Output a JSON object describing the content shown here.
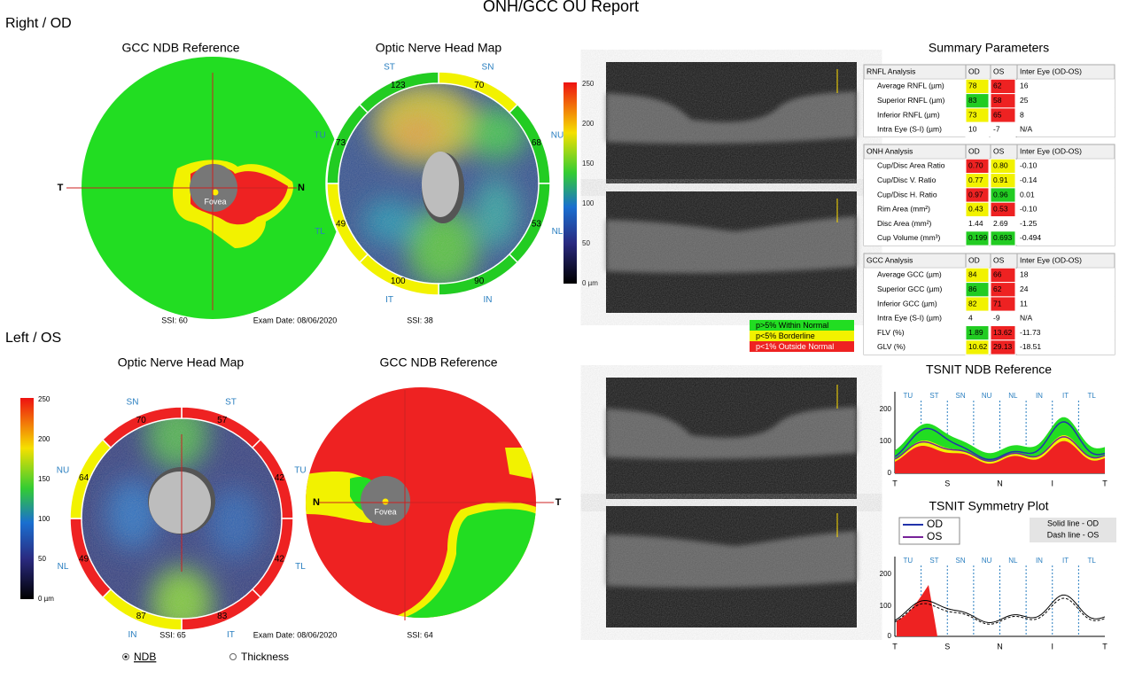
{
  "header": {
    "title": "ONH/GCC OU Report"
  },
  "exam_date": "Exam Date: 08/06/2020",
  "colorbar": [
    "250",
    "200",
    "150",
    "100",
    "50",
    "0 µm"
  ],
  "od": {
    "label": "Right / OD",
    "gcc": {
      "title": "GCC NDB Reference",
      "fovea": "Fovea",
      "temporal": "T",
      "nasal": "N",
      "ssi": "SSI: 60"
    },
    "onh": {
      "title": "Optic Nerve Head Map",
      "ssi": "SSI: 38",
      "sectors": [
        {
          "name": "SN",
          "value": "70",
          "color": "#f2f200"
        },
        {
          "name": "NU",
          "value": "68",
          "color": "#22cc22"
        },
        {
          "name": "NL",
          "value": "53",
          "color": "#22cc22"
        },
        {
          "name": "IN",
          "value": "90",
          "color": "#22cc22"
        },
        {
          "name": "IT",
          "value": "100",
          "color": "#f2f200"
        },
        {
          "name": "TL",
          "value": "49",
          "color": "#f2f200"
        },
        {
          "name": "TU",
          "value": "73",
          "color": "#22cc22"
        },
        {
          "name": "ST",
          "value": "123",
          "color": "#22cc22"
        }
      ]
    }
  },
  "os": {
    "label": "Left / OS",
    "onh": {
      "title": "Optic Nerve Head Map",
      "ssi": "SSI: 65",
      "sectors": [
        {
          "name": "ST",
          "value": "57",
          "color": "#ee2222"
        },
        {
          "name": "TU",
          "value": "42",
          "color": "#ee2222"
        },
        {
          "name": "TL",
          "value": "42",
          "color": "#ee2222"
        },
        {
          "name": "IT",
          "value": "83",
          "color": "#ee2222"
        },
        {
          "name": "IN",
          "value": "87",
          "color": "#f2f200"
        },
        {
          "name": "NL",
          "value": "49",
          "color": "#ee2222"
        },
        {
          "name": "NU",
          "value": "64",
          "color": "#f2f200"
        },
        {
          "name": "SN",
          "value": "70",
          "color": "#ee2222"
        }
      ]
    },
    "gcc": {
      "title": "GCC NDB Reference",
      "fovea": "Fovea",
      "temporal": "T",
      "nasal": "N",
      "ssi": "SSI: 64"
    }
  },
  "ndb_legend": [
    {
      "label": "p>5% Within Normal",
      "color": "#22dd22"
    },
    {
      "label": "p<5% Borderline",
      "color": "#f2f200"
    },
    {
      "label": "p<1% Outside Normal",
      "color": "#ee2222"
    }
  ],
  "summary": {
    "title": "Summary Parameters",
    "tables": [
      {
        "header": [
          "RNFL Analysis",
          "OD",
          "OS",
          "Inter Eye (OD-OS)"
        ],
        "rows": [
          [
            "Average RNFL (µm)",
            "78",
            "62",
            "16"
          ],
          [
            "Superior RNFL (µm)",
            "83",
            "58",
            "25"
          ],
          [
            "Inferior RNFL (µm)",
            "73",
            "65",
            "8"
          ],
          [
            "Intra Eye (S-I) (µm)",
            "10",
            "-7",
            "N/A"
          ]
        ],
        "colors": [
          [
            "#f2f200",
            "#ee2222"
          ],
          [
            "#22cc22",
            "#ee2222"
          ],
          [
            "#f2f200",
            "#ee2222"
          ],
          [
            "#ffffff",
            "#ffffff"
          ]
        ]
      },
      {
        "header": [
          "ONH Analysis",
          "OD",
          "OS",
          "Inter Eye (OD-OS)"
        ],
        "rows": [
          [
            "Cup/Disc Area Ratio",
            "0.70",
            "0.80",
            "-0.10"
          ],
          [
            "Cup/Disc V. Ratio",
            "0.77",
            "0.91",
            "-0.14"
          ],
          [
            "Cup/Disc H. Ratio",
            "0.97",
            "0.96",
            "0.01"
          ],
          [
            "Rim Area (mm²)",
            "0.43",
            "0.53",
            "-0.10"
          ],
          [
            "Disc Area (mm²)",
            "1.44",
            "2.69",
            "-1.25"
          ],
          [
            "Cup Volume (mm³)",
            "0.199",
            "0.693",
            "-0.494"
          ]
        ],
        "colors": [
          [
            "#ee2222",
            "#f2f200"
          ],
          [
            "#f2f200",
            "#f2f200"
          ],
          [
            "#ee2222",
            "#22cc22"
          ],
          [
            "#f2f200",
            "#ee2222"
          ],
          [
            "#ffffff",
            "#ffffff"
          ],
          [
            "#22cc22",
            "#22cc22"
          ]
        ]
      },
      {
        "header": [
          "GCC Analysis",
          "OD",
          "OS",
          "Inter Eye (OD-OS)"
        ],
        "rows": [
          [
            "Average GCC (µm)",
            "84",
            "66",
            "18"
          ],
          [
            "Superior GCC (µm)",
            "86",
            "62",
            "24"
          ],
          [
            "Inferior GCC (µm)",
            "82",
            "71",
            "11"
          ],
          [
            "Intra Eye (S-I) (µm)",
            "4",
            "-9",
            "N/A"
          ],
          [
            "FLV (%)",
            "1.89",
            "13.62",
            "-11.73"
          ],
          [
            "GLV (%)",
            "10.62",
            "29.13",
            "-18.51"
          ]
        ],
        "colors": [
          [
            "#f2f200",
            "#ee2222"
          ],
          [
            "#22cc22",
            "#ee2222"
          ],
          [
            "#f2f200",
            "#ee2222"
          ],
          [
            "#ffffff",
            "#ffffff"
          ],
          [
            "#22cc22",
            "#ee2222"
          ],
          [
            "#f2f200",
            "#ee2222"
          ]
        ]
      }
    ]
  },
  "tsnit_ndb": {
    "title": "TSNIT NDB Reference",
    "sectors": [
      "TU",
      "ST",
      "SN",
      "NU",
      "NL",
      "IN",
      "IT",
      "TL"
    ],
    "yticks": [
      "200",
      "100",
      "0"
    ],
    "xlabels": [
      "T",
      "S",
      "N",
      "I",
      "T"
    ]
  },
  "tsnit_symmetry": {
    "title": "TSNIT Symmetry Plot",
    "legend": [
      {
        "name": "OD",
        "color": "#2233aa"
      },
      {
        "name": "OS",
        "color": "#772299"
      }
    ],
    "note": [
      "Solid line - OD",
      "Dash line - OS"
    ],
    "sectors": [
      "TU",
      "ST",
      "SN",
      "NU",
      "NL",
      "IN",
      "IT",
      "TL"
    ],
    "yticks": [
      "200",
      "100",
      "0"
    ],
    "xlabels": [
      "T",
      "S",
      "N",
      "I",
      "T"
    ]
  },
  "display": {
    "options": [
      "NDB",
      "Thickness"
    ]
  }
}
